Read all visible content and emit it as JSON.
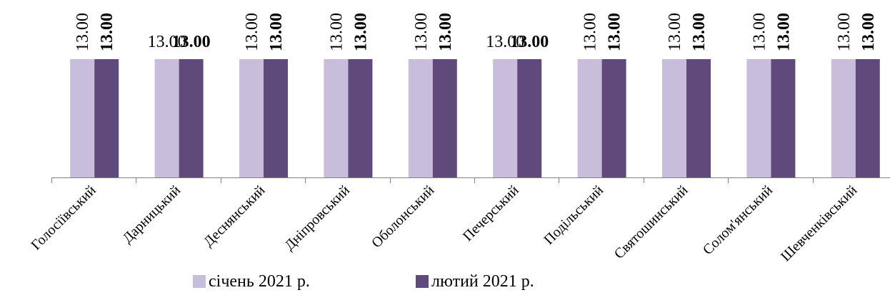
{
  "chart_data": {
    "type": "bar",
    "title": "",
    "xlabel": "",
    "ylabel": "",
    "categories": [
      "Голосіївський",
      "Дарницький",
      "Деснянський",
      "Дніпровський",
      "Оболонський",
      "Печерський",
      "Подільський",
      "Святошинський",
      "Солом'янський",
      "Шевченківський"
    ],
    "series": [
      {
        "name": "січень 2021 р.",
        "color": "#c8bedb",
        "values": [
          13,
          13,
          13,
          13,
          13,
          13,
          13,
          13,
          13,
          13
        ],
        "labels": [
          "13.00",
          "13.00",
          "13.00",
          "13.00",
          "13.00",
          "13.00",
          "13.00",
          "13.00",
          "13.00",
          "13.00"
        ]
      },
      {
        "name": "лютий 2021 р.",
        "color": "#604a7b",
        "values": [
          13,
          13,
          13,
          13,
          13,
          13,
          13,
          13,
          13,
          13
        ],
        "labels": [
          "13.00",
          "13.00",
          "13.00",
          "13.00",
          "13.00",
          "13.00",
          "13.00",
          "13.00",
          "13.00",
          "13.00"
        ]
      }
    ],
    "ylim": [
      0,
      13
    ],
    "grid": false,
    "legend_position": "bottom",
    "axis_color": "#808080"
  }
}
